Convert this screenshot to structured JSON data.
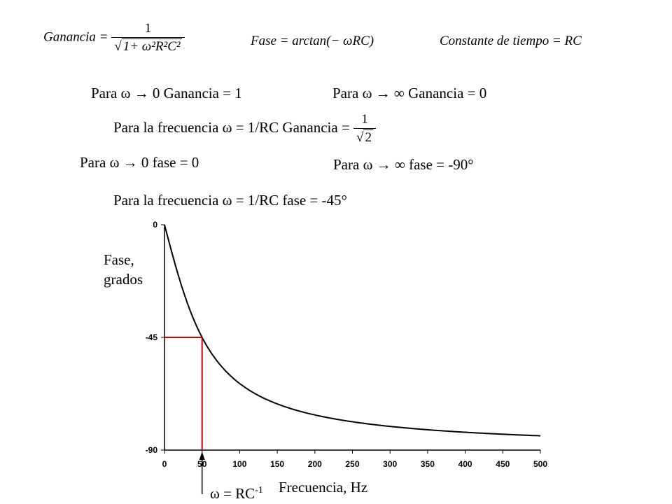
{
  "formulas": {
    "gain_lhs": "Ganancia =",
    "gain_num": "1",
    "gain_den": "1+ ω²R²C²",
    "phase_lhs": "Fase",
    "phase_rhs": "= arctan(− ωRC)",
    "time_constant": "Constante  de tiempo = RC"
  },
  "statements": {
    "low_gain": "Para ω → 0 Ganancia = 1",
    "high_gain": "Para ω → ∞ Ganancia = 0",
    "mid_gain_prefix": "Para la frecuencia ω = 1/RC   Ganancia =",
    "mid_gain_num": "1",
    "mid_gain_den": "2",
    "low_phase": "Para ω → 0 fase = 0",
    "high_phase": "Para ω → ∞ fase = -90°",
    "mid_phase": "Para la frecuencia ω = 1/RC   fase = -45°"
  },
  "chart_data": {
    "type": "line",
    "title": "",
    "xlabel": "Frecuencia, Hz",
    "ylabel_line1": "Fase,",
    "ylabel_line2": "grados",
    "xlim": [
      0,
      500
    ],
    "ylim": [
      -90,
      0
    ],
    "x_ticks": [
      "0",
      "50",
      "100",
      "150",
      "200",
      "250",
      "300",
      "350",
      "400",
      "450",
      "500"
    ],
    "y_ticks": [
      "0",
      "-45",
      "-90"
    ],
    "curve": {
      "function": "phase = -atan(f/50) in degrees",
      "x": [
        0,
        10,
        20,
        30,
        40,
        50,
        60,
        80,
        100,
        150,
        200,
        250,
        300,
        350,
        400,
        450,
        500
      ],
      "y": [
        0,
        -11.3,
        -21.8,
        -31.0,
        -38.7,
        -45.0,
        -50.2,
        -58.0,
        -63.4,
        -71.6,
        -76.0,
        -78.7,
        -80.5,
        -81.9,
        -82.9,
        -83.7,
        -84.3
      ],
      "color": "#000000"
    },
    "marker": {
      "x": 50,
      "y": -45,
      "color": "#cc0000",
      "label": "ω = RC",
      "label_sup": "-1"
    }
  }
}
